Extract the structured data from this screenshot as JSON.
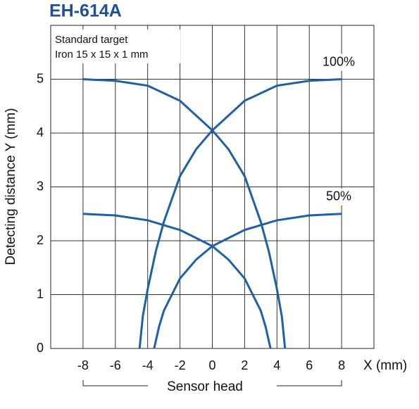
{
  "chart_data": {
    "type": "line",
    "title": "EH-614A",
    "annotation": [
      "Standard target",
      "Iron 15 x 15 x 1 mm"
    ],
    "ylabel": "Detecting distance Y (mm)",
    "xlabel": "X (mm)",
    "footer": "Sensor head",
    "xlim": [
      -10,
      10
    ],
    "xticks": [
      -8,
      -6,
      -4,
      -2,
      0,
      2,
      4,
      6,
      8
    ],
    "ylim": [
      0,
      6
    ],
    "yticks": [
      0,
      1,
      2,
      3,
      4,
      5
    ],
    "grid": true,
    "series": [
      {
        "name": "100%",
        "color": "#1f5fa6",
        "x": [
          -8,
          -6,
          -4,
          -2,
          0,
          1,
          2,
          3,
          3.5,
          4,
          4.3,
          4.5
        ],
        "values": [
          5,
          4.97,
          4.88,
          4.6,
          4.05,
          3.7,
          3.2,
          2.35,
          1.8,
          1.1,
          0.6,
          0
        ]
      },
      {
        "color": "#1f5fa6",
        "x": [
          8,
          6,
          4,
          2,
          0,
          -1,
          -2,
          -3,
          -3.5,
          -4,
          -4.3,
          -4.5
        ],
        "values": [
          5,
          4.97,
          4.88,
          4.6,
          4.05,
          3.7,
          3.2,
          2.35,
          1.8,
          1.1,
          0.6,
          0
        ]
      },
      {
        "name": "50%",
        "color": "#1f5fa6",
        "x": [
          -8,
          -6,
          -4,
          -2,
          0,
          1,
          2,
          3,
          3.3,
          3.6
        ],
        "values": [
          2.5,
          2.47,
          2.38,
          2.2,
          1.9,
          1.65,
          1.3,
          0.7,
          0.4,
          0
        ]
      },
      {
        "color": "#1f5fa6",
        "x": [
          8,
          6,
          4,
          2,
          0,
          -1,
          -2,
          -3,
          -3.3,
          -3.6
        ],
        "values": [
          2.5,
          2.47,
          2.38,
          2.2,
          1.9,
          1.65,
          1.3,
          0.7,
          0.4,
          0
        ]
      }
    ]
  }
}
